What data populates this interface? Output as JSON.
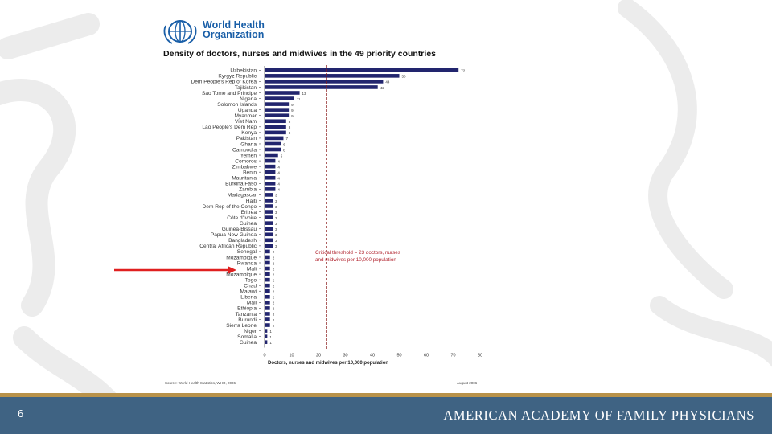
{
  "logo": {
    "line1": "World Health",
    "line2": "Organization"
  },
  "chart_data": {
    "type": "bar",
    "orientation": "horizontal",
    "title": "Density of doctors, nurses and midwives in the 49 priority countries",
    "xlabel": "Doctors, nurses and midwives per 10,000 population",
    "ylabel": "",
    "xlim": [
      0,
      80
    ],
    "xticks": [
      0,
      10,
      20,
      30,
      40,
      50,
      60,
      70,
      80
    ],
    "threshold": {
      "value": 23,
      "label_lines": [
        "Critical threshold = 23 doctors, nurses",
        "and midwives per 10,000 population"
      ]
    },
    "categories": [
      "Uzbekistan",
      "Kyrgyz Republic",
      "Dem People's Rep of Korea",
      "Tajikistan",
      "Sao Tome and Principe",
      "Nigeria",
      "Solomon Islands",
      "Uganda",
      "Myanmar",
      "Viet Nam",
      "Lao People's Dem Rep",
      "Kenya",
      "Pakistan",
      "Ghana",
      "Cambodia",
      "Yemen",
      "Comoros",
      "Zimbabwe",
      "Benin",
      "Mauritania",
      "Burkina Faso",
      "Zambia",
      "Madagascar",
      "Haiti",
      "Dem Rep of the Congo",
      "Eritrea",
      "Côte d'Ivoire",
      "Guinea",
      "Guinea-Bissau",
      "Papua New Guinea",
      "Bangladesh",
      "Central African Republic",
      "Senegal",
      "Mozambique",
      "Rwanda",
      "Mali",
      "Mozambique",
      "Togo",
      "Chad",
      "Malawi",
      "Liberia",
      "Mali",
      "Ethiopia",
      "Tanzania",
      "Burundi",
      "Sierra Leone",
      "Niger",
      "Somalia",
      "Guinea"
    ],
    "values": [
      72,
      50,
      44,
      42,
      13,
      11,
      9,
      9,
      9,
      8,
      8,
      8,
      7,
      6,
      6,
      5,
      4,
      4,
      4,
      4,
      4,
      4,
      3,
      3,
      3,
      3,
      3,
      3,
      3,
      3,
      3,
      3,
      2,
      2,
      2,
      2,
      2,
      2,
      2,
      2,
      2,
      2,
      2,
      2,
      2,
      2,
      1,
      1,
      1
    ],
    "value_labels": [
      "72",
      "50",
      "44",
      "42",
      "13",
      "11",
      "9",
      "9",
      "9",
      "8",
      "8",
      "8",
      "7",
      "6",
      "6",
      "5",
      "4",
      "4",
      "4",
      "4",
      "4",
      "4",
      "3",
      "3",
      "3",
      "3",
      "3",
      "3",
      "3",
      "3",
      "3",
      "3",
      "2",
      "2",
      "2",
      "2",
      "2",
      "2",
      "2",
      "2",
      "2",
      "2",
      "2",
      "2",
      "2",
      "2",
      "1",
      "1",
      "1"
    ],
    "source": "Source: World Health Statistics, WHO, 2006",
    "date": "August 2006"
  },
  "footer": {
    "slide_number": "6",
    "org_name": "AMERICAN ACADEMY OF FAMILY PHYSICIANS"
  },
  "colors": {
    "bar": "#22256e",
    "threshold": "#8a1c1c",
    "arrow": "#e02020",
    "footer_bg": "#3f6383",
    "stripe": "#b8924a"
  }
}
